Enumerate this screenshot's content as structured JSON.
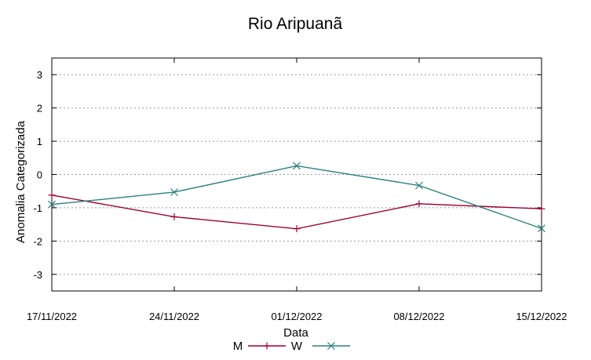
{
  "chart_data": {
    "type": "line",
    "title": "Rio Aripuanã",
    "xlabel": "Data",
    "ylabel": "Anomalia Categorizada",
    "categories": [
      "17/11/2022",
      "24/11/2022",
      "01/12/2022",
      "08/12/2022",
      "15/12/2022"
    ],
    "ylim": [
      -3.5,
      3.5
    ],
    "yticks": [
      3,
      2,
      1,
      0,
      -1,
      -2,
      -3
    ],
    "ytick_labels": [
      "3",
      "2",
      "1",
      "0",
      "-1",
      "-2",
      "-3"
    ],
    "grid": true,
    "legend_position": "bottom",
    "series": [
      {
        "name": "M",
        "color": "#a00030",
        "marker": "plus",
        "values": [
          -0.62,
          -1.27,
          -1.63,
          -0.88,
          -1.03
        ]
      },
      {
        "name": "W",
        "color": "#2a8080",
        "marker": "x",
        "values": [
          -0.9,
          -0.53,
          0.26,
          -0.33,
          -1.62
        ]
      }
    ]
  }
}
